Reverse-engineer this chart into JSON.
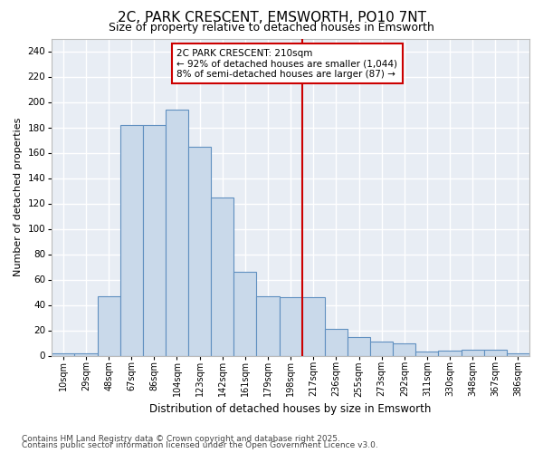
{
  "title": "2C, PARK CRESCENT, EMSWORTH, PO10 7NT",
  "subtitle": "Size of property relative to detached houses in Emsworth",
  "xlabel": "Distribution of detached houses by size in Emsworth",
  "ylabel": "Number of detached properties",
  "categories": [
    "10sqm",
    "29sqm",
    "48sqm",
    "67sqm",
    "86sqm",
    "104sqm",
    "123sqm",
    "142sqm",
    "161sqm",
    "179sqm",
    "198sqm",
    "217sqm",
    "236sqm",
    "255sqm",
    "273sqm",
    "292sqm",
    "311sqm",
    "330sqm",
    "348sqm",
    "367sqm",
    "386sqm"
  ],
  "values": [
    2,
    2,
    47,
    182,
    182,
    194,
    165,
    125,
    66,
    47,
    46,
    46,
    21,
    15,
    11,
    10,
    3,
    4,
    5,
    5,
    2
  ],
  "bar_color": "#c9d9ea",
  "bar_edge_color": "#6090c0",
  "vline_index": 11,
  "vline_color": "#cc0000",
  "annotation_text": "2C PARK CRESCENT: 210sqm\n← 92% of detached houses are smaller (1,044)\n8% of semi-detached houses are larger (87) →",
  "annotation_box_color": "#ffffff",
  "annotation_box_edge": "#cc0000",
  "ylim": [
    0,
    250
  ],
  "yticks": [
    0,
    20,
    40,
    60,
    80,
    100,
    120,
    140,
    160,
    180,
    200,
    220,
    240
  ],
  "plot_bg_color": "#e8edf4",
  "fig_bg_color": "#ffffff",
  "grid_color": "#ffffff",
  "footer_line1": "Contains HM Land Registry data © Crown copyright and database right 2025.",
  "footer_line2": "Contains public sector information licensed under the Open Government Licence v3.0."
}
